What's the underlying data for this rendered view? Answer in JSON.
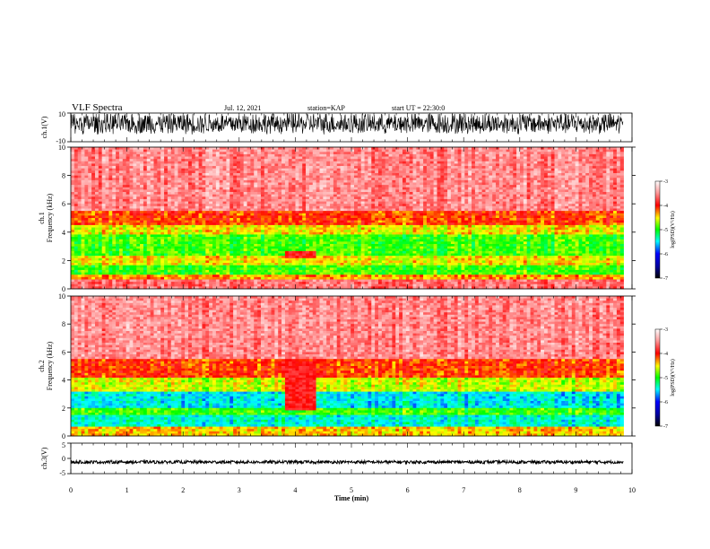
{
  "header": {
    "title": "VLF Spectra",
    "date": "Jul. 12, 2021",
    "station": "station=KAP",
    "start": "start UT = 22:30:0"
  },
  "chart_data": [
    {
      "type": "line",
      "panel": "ch1-waveform",
      "ylabel": "ch.1(V)",
      "ylim": [
        -10,
        10
      ],
      "yticks": [
        "10",
        "-10"
      ],
      "xlim": [
        0,
        10
      ],
      "description_values": {
        "typical_amplitude": [
          -8,
          9
        ],
        "baseline": 0
      }
    },
    {
      "type": "heatmap",
      "panel": "ch1-spectrogram",
      "ylabel": "ch.1\nFrequency (kHz)",
      "ylabel_line1": "ch.1",
      "ylabel_line2": "Frequency (kHz)",
      "ylim": [
        0,
        10
      ],
      "yticks": [
        "0",
        "2",
        "4",
        "6",
        "8",
        "10"
      ],
      "xlim": [
        0,
        9.85
      ],
      "colorbar": {
        "label": "log(PSD)(V²/Hz)",
        "ticks": [
          "-3",
          "-4",
          "-5",
          "-6",
          "-7"
        ],
        "range": [
          -7,
          -3
        ]
      },
      "bands": [
        {
          "f0": 5.5,
          "f1": 10,
          "level": -3.5
        },
        {
          "f0": 4.5,
          "f1": 5.5,
          "level": -4.1
        },
        {
          "f0": 3.8,
          "f1": 4.5,
          "level": -4.5
        },
        {
          "f0": 2.4,
          "f1": 3.8,
          "level": -4.9
        },
        {
          "f0": 1.6,
          "f1": 2.4,
          "level": -4.5
        },
        {
          "f0": 1.0,
          "f1": 1.6,
          "level": -4.9
        },
        {
          "f0": 0.6,
          "f1": 1.0,
          "level": -4.3
        },
        {
          "f0": 0.0,
          "f1": 0.6,
          "level": -3.6
        }
      ],
      "event": {
        "t0": 3.8,
        "t1": 4.4,
        "f0": 2.1,
        "f1": 2.6
      }
    },
    {
      "type": "heatmap",
      "panel": "ch2-spectrogram",
      "ylabel_line1": "ch.2",
      "ylabel_line2": "Frequency (kHz)",
      "ylim": [
        0,
        10
      ],
      "yticks": [
        "0",
        "2",
        "4",
        "6",
        "8",
        "10"
      ],
      "xlim": [
        0,
        9.85
      ],
      "colorbar": {
        "label": "log(PSD)(V²/Hz)",
        "ticks": [
          "-3",
          "-4",
          "-5",
          "-6",
          "-7"
        ],
        "range": [
          -7,
          -3
        ]
      },
      "bands": [
        {
          "f0": 5.5,
          "f1": 10,
          "level": -3.5
        },
        {
          "f0": 4.2,
          "f1": 5.5,
          "level": -4.1
        },
        {
          "f0": 3.2,
          "f1": 4.2,
          "level": -4.6
        },
        {
          "f0": 2.0,
          "f1": 3.2,
          "level": -5.5
        },
        {
          "f0": 1.5,
          "f1": 2.0,
          "level": -4.9
        },
        {
          "f0": 0.7,
          "f1": 1.5,
          "level": -5.4
        },
        {
          "f0": 0.0,
          "f1": 0.7,
          "level": -4.4
        }
      ],
      "event": {
        "t0": 3.8,
        "t1": 4.4,
        "f0": 1.8,
        "f1": 5.3
      }
    },
    {
      "type": "line",
      "panel": "ch3-waveform",
      "ylabel": "ch.3(V)",
      "ylim": [
        -5,
        5
      ],
      "yticks": [
        "5",
        "0",
        "-5"
      ],
      "xlim": [
        0,
        10
      ],
      "xlabel": "Time (min)",
      "xticks": [
        "0",
        "1",
        "2",
        "3",
        "4",
        "5",
        "6",
        "7",
        "8",
        "9",
        "10"
      ],
      "description_values": {
        "baseline": -1.2,
        "amplitude": 0.5
      }
    }
  ]
}
